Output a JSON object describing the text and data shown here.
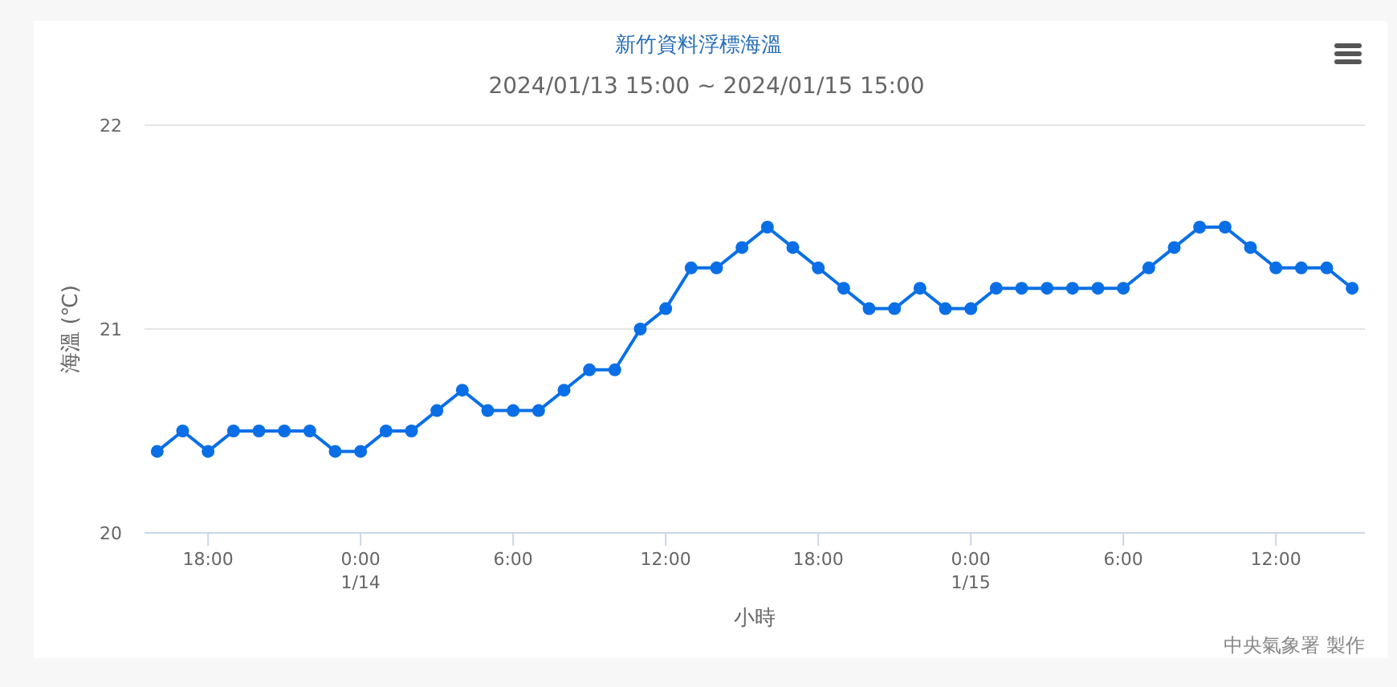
{
  "chart_data": {
    "type": "line",
    "title": "新竹資料浮標海溫",
    "subtitle": "2024/01/13 15:00 ~ 2024/01/15 15:00",
    "xlabel": "小時",
    "ylabel": "海溫 (℃)",
    "annotations": [
      "中央氣象署 製作"
    ],
    "x": [
      "2024-01-13T16:00",
      "2024-01-13T17:00",
      "2024-01-13T18:00",
      "2024-01-13T19:00",
      "2024-01-13T20:00",
      "2024-01-13T21:00",
      "2024-01-13T22:00",
      "2024-01-13T23:00",
      "2024-01-14T00:00",
      "2024-01-14T01:00",
      "2024-01-14T02:00",
      "2024-01-14T03:00",
      "2024-01-14T04:00",
      "2024-01-14T05:00",
      "2024-01-14T06:00",
      "2024-01-14T07:00",
      "2024-01-14T08:00",
      "2024-01-14T09:00",
      "2024-01-14T10:00",
      "2024-01-14T11:00",
      "2024-01-14T12:00",
      "2024-01-14T13:00",
      "2024-01-14T14:00",
      "2024-01-14T15:00",
      "2024-01-14T16:00",
      "2024-01-14T17:00",
      "2024-01-14T18:00",
      "2024-01-14T19:00",
      "2024-01-14T20:00",
      "2024-01-14T21:00",
      "2024-01-14T22:00",
      "2024-01-14T23:00",
      "2024-01-15T00:00",
      "2024-01-15T01:00",
      "2024-01-15T02:00",
      "2024-01-15T03:00",
      "2024-01-15T04:00",
      "2024-01-15T05:00",
      "2024-01-15T06:00",
      "2024-01-15T07:00",
      "2024-01-15T08:00",
      "2024-01-15T09:00",
      "2024-01-15T10:00",
      "2024-01-15T11:00",
      "2024-01-15T12:00",
      "2024-01-15T13:00",
      "2024-01-15T14:00",
      "2024-01-15T15:00"
    ],
    "series": [
      {
        "color": "#0a6fe6",
        "values": [
          20.4,
          20.5,
          20.4,
          20.5,
          20.5,
          20.5,
          20.5,
          20.4,
          20.4,
          20.5,
          20.5,
          20.6,
          20.7,
          20.6,
          20.6,
          20.6,
          20.7,
          20.8,
          20.8,
          21.0,
          21.1,
          21.3,
          21.3,
          21.4,
          21.5,
          21.4,
          21.3,
          21.2,
          21.1,
          21.1,
          21.2,
          21.1,
          21.1,
          21.2,
          21.2,
          21.2,
          21.2,
          21.2,
          21.2,
          21.3,
          21.4,
          21.5,
          21.5,
          21.4,
          21.3,
          21.3,
          21.3,
          21.2
        ]
      }
    ],
    "xlim": [
      "2024-01-13T15:30",
      "2024-01-15T15:30"
    ],
    "xticks": [
      {
        "value": "2024-01-13T18:00",
        "label": "18:00"
      },
      {
        "value": "2024-01-14T00:00",
        "label": "0:00\n1/14"
      },
      {
        "value": "2024-01-14T06:00",
        "label": "6:00"
      },
      {
        "value": "2024-01-14T12:00",
        "label": "12:00"
      },
      {
        "value": "2024-01-14T18:00",
        "label": "18:00"
      },
      {
        "value": "2024-01-15T00:00",
        "label": "0:00\n1/15"
      },
      {
        "value": "2024-01-15T06:00",
        "label": "6:00"
      },
      {
        "value": "2024-01-15T12:00",
        "label": "12:00"
      }
    ],
    "ylim": [
      20,
      22
    ],
    "yticks": [
      20,
      21,
      22
    ],
    "grid": "y",
    "marker": "circle",
    "line_style": "solid"
  }
}
